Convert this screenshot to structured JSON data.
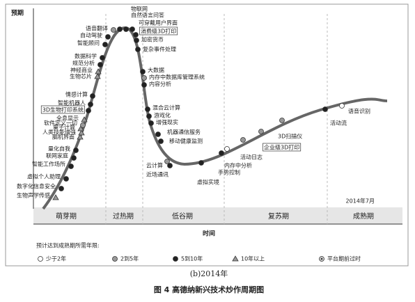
{
  "header": {
    "y_axis_label": "预期",
    "x_axis_label": "时间",
    "date": "2014年7月"
  },
  "phases": [
    "萌芽期",
    "过热期",
    "低谷期",
    "复苏期",
    "成熟期"
  ],
  "legend": {
    "title": "预计达到成熟期所需年限:",
    "items": [
      {
        "label": "少于2年",
        "marker": "white"
      },
      {
        "label": "2到5年",
        "marker": "gray"
      },
      {
        "label": "5到10年",
        "marker": "dark"
      },
      {
        "label": "10年以上",
        "marker": "triangle"
      },
      {
        "label": "平台期前过时",
        "marker": "crossed"
      }
    ]
  },
  "technologies": [
    {
      "label": "生物声学传感",
      "marker": "triangle"
    },
    {
      "label": "数字化信息安全",
      "marker": "dark"
    },
    {
      "label": "虚拟个人助理",
      "marker": "dark"
    },
    {
      "label": "智能工作场所",
      "marker": "dark"
    },
    {
      "label": "联网家庭",
      "marker": "dark"
    },
    {
      "label": "量化自我",
      "marker": "dark"
    },
    {
      "label": "脑机界面",
      "marker": "triangle"
    },
    {
      "label": "人类技能增强",
      "marker": "triangle"
    },
    {
      "label": "量子计算",
      "marker": "triangle"
    },
    {
      "label": "软件定义一切",
      "marker": "gray"
    },
    {
      "label": "全息显示",
      "marker": "triangle"
    },
    {
      "label": "3D生物打印系统",
      "marker": "dark",
      "boxed": true
    },
    {
      "label": "智能机器人",
      "marker": "dark"
    },
    {
      "label": "情感计算",
      "marker": "dark"
    },
    {
      "label": "生物芯片",
      "marker": "triangle"
    },
    {
      "label": "神经商业",
      "marker": "triangle"
    },
    {
      "label": "规范分析",
      "marker": "dark"
    },
    {
      "label": "数据科学",
      "marker": "dark"
    },
    {
      "label": "智能顾问",
      "marker": "dark"
    },
    {
      "label": "自动驾驶",
      "marker": "dark"
    },
    {
      "label": "语音翻译",
      "marker": "gray"
    },
    {
      "label": "物联网",
      "marker": "dark"
    },
    {
      "label": "自然语言问答",
      "marker": "dark"
    },
    {
      "label": "可穿戴用户界面",
      "marker": "dark"
    },
    {
      "label": "消费级3D打印",
      "marker": "dark",
      "boxed": true
    },
    {
      "label": "加密货币",
      "marker": "dark"
    },
    {
      "label": "复杂事件处理",
      "marker": "dark"
    },
    {
      "label": "大数据",
      "marker": "dark"
    },
    {
      "label": "内存中数据库管理系统",
      "marker": "gray"
    },
    {
      "label": "内容分析",
      "marker": "dark"
    },
    {
      "label": "混合云计算",
      "marker": "dark"
    },
    {
      "label": "游戏化",
      "marker": "dark"
    },
    {
      "label": "增强现实",
      "marker": "dark"
    },
    {
      "label": "机器通信服务",
      "marker": "dark"
    },
    {
      "label": "移动健康监测",
      "marker": "dark"
    },
    {
      "label": "云计算",
      "marker": "gray"
    },
    {
      "label": "近场通讯",
      "marker": "dark"
    },
    {
      "label": "虚拟实境",
      "marker": "dark"
    },
    {
      "label": "手势控制",
      "marker": "dark"
    },
    {
      "label": "内存中分析",
      "marker": "white"
    },
    {
      "label": "活动日志",
      "marker": "gray"
    },
    {
      "label": "企业级3D打印",
      "marker": "gray",
      "boxed": true
    },
    {
      "label": "3D扫描仪",
      "marker": "gray"
    },
    {
      "label": "活动流",
      "marker": "dark"
    },
    {
      "label": "语音识别",
      "marker": "white"
    }
  ],
  "caption": {
    "sub": "(b)2014年",
    "figure": "图 4    高德纳新兴技术炒作周期图"
  }
}
